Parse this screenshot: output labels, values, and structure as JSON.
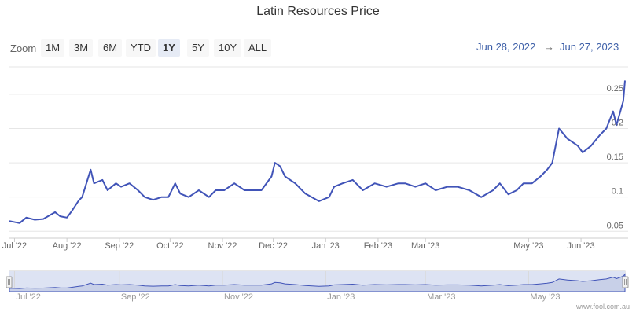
{
  "title": "Latin Resources Price",
  "zoom": {
    "label": "Zoom",
    "buttons": [
      "1M",
      "3M",
      "6M",
      "YTD",
      "1Y",
      "5Y",
      "10Y",
      "ALL"
    ],
    "active": "1Y"
  },
  "range": {
    "from": "Jun 28, 2022",
    "arrow": "→",
    "to": "Jun 27, 2023"
  },
  "credit": "www.fool.com.au",
  "colors": {
    "line": "#4154b8",
    "navigator_fill": "#c8d0e8",
    "grid": "#e6e6e6",
    "link": "#3d5fa8"
  },
  "chart_data": {
    "type": "line",
    "title": "Latin Resources Price",
    "series": [
      {
        "x": [
          "2022-06-28",
          "2022-07-04",
          "2022-07-08",
          "2022-07-13",
          "2022-07-18",
          "2022-07-25",
          "2022-07-28",
          "2022-08-01",
          "2022-08-04",
          "2022-08-08",
          "2022-08-10",
          "2022-08-15",
          "2022-08-17",
          "2022-08-22",
          "2022-08-25",
          "2022-08-30",
          "2022-09-02",
          "2022-09-07",
          "2022-09-12",
          "2022-09-16",
          "2022-09-21",
          "2022-09-26",
          "2022-09-30",
          "2022-10-04",
          "2022-10-07",
          "2022-10-12",
          "2022-10-18",
          "2022-10-24",
          "2022-10-28",
          "2022-11-02",
          "2022-11-08",
          "2022-11-14",
          "2022-11-18",
          "2022-11-24",
          "2022-11-30",
          "2022-12-02",
          "2022-12-05",
          "2022-12-08",
          "2022-12-14",
          "2022-12-20",
          "2022-12-28",
          "2023-01-03",
          "2023-01-06",
          "2023-01-11",
          "2023-01-17",
          "2023-01-23",
          "2023-01-30",
          "2023-02-06",
          "2023-02-13",
          "2023-02-17",
          "2023-02-23",
          "2023-03-01",
          "2023-03-07",
          "2023-03-14",
          "2023-03-20",
          "2023-03-27",
          "2023-04-03",
          "2023-04-10",
          "2023-04-14",
          "2023-04-19",
          "2023-04-24",
          "2023-04-28",
          "2023-05-03",
          "2023-05-08",
          "2023-05-12",
          "2023-05-15",
          "2023-05-19",
          "2023-05-24",
          "2023-05-30",
          "2023-06-02",
          "2023-06-07",
          "2023-06-12",
          "2023-06-16",
          "2023-06-20",
          "2023-06-22",
          "2023-06-26",
          "2023-06-27"
        ],
        "values": [
          0.065,
          0.062,
          0.07,
          0.067,
          0.068,
          0.078,
          0.072,
          0.07,
          0.08,
          0.095,
          0.1,
          0.14,
          0.12,
          0.125,
          0.11,
          0.12,
          0.115,
          0.12,
          0.11,
          0.1,
          0.096,
          0.1,
          0.1,
          0.12,
          0.105,
          0.1,
          0.11,
          0.1,
          0.11,
          0.11,
          0.12,
          0.11,
          0.11,
          0.11,
          0.13,
          0.15,
          0.145,
          0.13,
          0.12,
          0.105,
          0.094,
          0.1,
          0.115,
          0.12,
          0.125,
          0.11,
          0.12,
          0.115,
          0.12,
          0.12,
          0.115,
          0.12,
          0.11,
          0.115,
          0.115,
          0.11,
          0.1,
          0.11,
          0.12,
          0.104,
          0.11,
          0.12,
          0.12,
          0.13,
          0.14,
          0.15,
          0.2,
          0.185,
          0.175,
          0.165,
          0.175,
          0.19,
          0.2,
          0.225,
          0.205,
          0.24,
          0.27
        ]
      }
    ],
    "xlim": [
      "2022-06-28",
      "2023-06-27"
    ],
    "ylim": [
      0.04,
      0.29
    ],
    "x_ticks": [
      {
        "label": "Jul '22",
        "date": "2022-07-01"
      },
      {
        "label": "Aug '22",
        "date": "2022-08-01"
      },
      {
        "label": "Sep '22",
        "date": "2022-09-01"
      },
      {
        "label": "Oct '22",
        "date": "2022-10-01"
      },
      {
        "label": "Nov '22",
        "date": "2022-11-01"
      },
      {
        "label": "Dec '22",
        "date": "2022-12-01"
      },
      {
        "label": "Jan '23",
        "date": "2023-01-01"
      },
      {
        "label": "Feb '23",
        "date": "2023-02-01"
      },
      {
        "label": "Mar '23",
        "date": "2023-03-01"
      },
      {
        "label": "May '23",
        "date": "2023-05-01"
      },
      {
        "label": "Jun '23",
        "date": "2023-06-01"
      }
    ],
    "y_ticks": [
      {
        "label": "0.05",
        "value": 0.05
      },
      {
        "label": "0.1",
        "value": 0.1
      },
      {
        "label": "0.15",
        "value": 0.15
      },
      {
        "label": "0.2",
        "value": 0.2
      },
      {
        "label": "0.25",
        "value": 0.25
      }
    ],
    "grid": true,
    "navigator": {
      "labels": [
        "Jul '22",
        "Sep '22",
        "Nov '22",
        "Jan '23",
        "Mar '23",
        "May '23"
      ],
      "dates": [
        "2022-07-01",
        "2022-09-01",
        "2022-11-01",
        "2023-01-01",
        "2023-03-01",
        "2023-05-01"
      ]
    }
  }
}
